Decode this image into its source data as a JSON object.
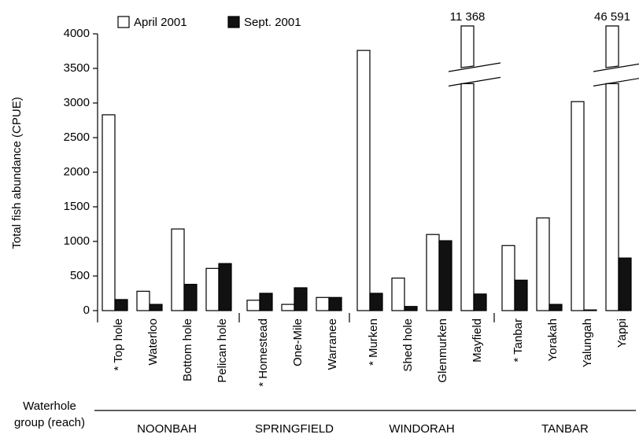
{
  "chart_data": {
    "type": "bar",
    "y_label": "Total fish abundance (CPUE)",
    "x_label": "Waterhole group (reach)",
    "groups": [
      {
        "name": "NOONBAH",
        "categories": [
          "* Top hole",
          "Waterloo",
          "Bottom hole",
          "Pelican hole"
        ]
      },
      {
        "name": "SPRINGFIELD",
        "categories": [
          "* Homestead",
          "One-Mile",
          "Warranee"
        ]
      },
      {
        "name": "WINDORAH",
        "categories": [
          "* Murken",
          "Shed hole",
          "Glenmurken",
          "Mayfield"
        ]
      },
      {
        "name": "TANBAR",
        "categories": [
          "* Tanbar",
          "Yorakah",
          "Yalungah",
          "Yappi"
        ]
      }
    ],
    "series": [
      {
        "name": "April 2001",
        "color": "#ffffff",
        "values": [
          2830,
          280,
          1180,
          610,
          150,
          90,
          190,
          3760,
          470,
          1100,
          11368,
          940,
          1340,
          3020,
          46591
        ],
        "value_labels": [
          null,
          null,
          null,
          null,
          null,
          null,
          null,
          null,
          null,
          null,
          "11 368",
          null,
          null,
          null,
          "46 591"
        ]
      },
      {
        "name": "Sept. 2001",
        "color": "#111111",
        "values": [
          160,
          90,
          380,
          680,
          250,
          330,
          190,
          250,
          60,
          1010,
          240,
          440,
          90,
          10,
          760
        ]
      }
    ],
    "ylim": [
      0,
      4000
    ],
    "yticks": [
      0,
      500,
      1000,
      1500,
      2000,
      2500,
      3000,
      3500,
      4000
    ],
    "axis_break": true
  }
}
